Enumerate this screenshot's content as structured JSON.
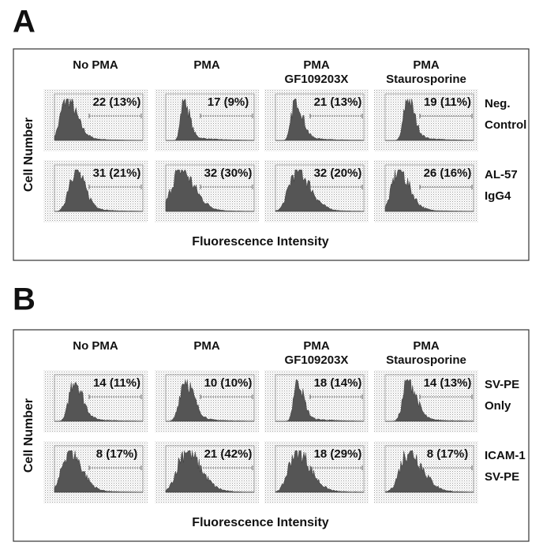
{
  "panels": [
    {
      "label": "A",
      "columns": [
        [
          "No PMA"
        ],
        [
          "PMA"
        ],
        [
          "PMA",
          "GF109203X"
        ],
        [
          "PMA",
          "Staurosporine"
        ]
      ],
      "rows": [
        {
          "label": [
            "Neg.",
            "Control"
          ],
          "cells": [
            "22 (13%)",
            "17 (9%)",
            "21 (13%)",
            "19 (11%)"
          ]
        },
        {
          "label": [
            "AL-57",
            "IgG4"
          ],
          "cells": [
            "31 (21%)",
            "32 (30%)",
            "32 (20%)",
            "26 (16%)"
          ]
        }
      ],
      "y_label": "Cell Number",
      "x_label": "Fluorescence Intensity"
    },
    {
      "label": "B",
      "columns": [
        [
          "No PMA"
        ],
        [
          "PMA"
        ],
        [
          "PMA",
          "GF109203X"
        ],
        [
          "PMA",
          "Staurosporine"
        ]
      ],
      "rows": [
        {
          "label": [
            "SV-PE",
            "Only"
          ],
          "cells": [
            "14 (11%)",
            "10 (10%)",
            "18 (14%)",
            "14 (13%)"
          ]
        },
        {
          "label": [
            "ICAM-1",
            "SV-PE"
          ],
          "cells": [
            "8 (17%)",
            "21 (42%)",
            "18 (29%)",
            "8 (17%)"
          ]
        }
      ],
      "y_label": "Cell Number",
      "x_label": "Fluorescence Intensity"
    }
  ]
}
